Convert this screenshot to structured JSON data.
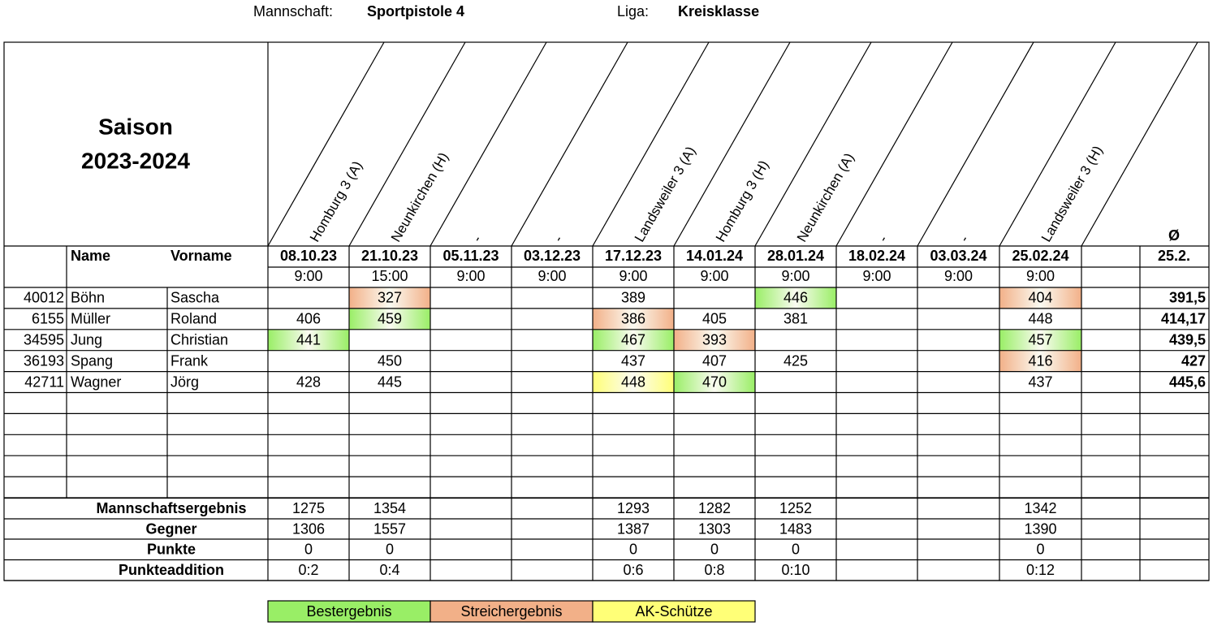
{
  "header": {
    "team_label": "Mannschaft:",
    "team": "Sportpistole 4",
    "league_label": "Liga:",
    "league": "Kreisklasse"
  },
  "season": {
    "title": "Saison",
    "years": "2023-2024"
  },
  "columns": {
    "name": "Name",
    "first_name": "Vorname",
    "average": "Ø",
    "average_date": "25.2."
  },
  "matches": [
    {
      "opponent": "Homburg 3 (A)",
      "date": "08.10.23",
      "time": "9:00"
    },
    {
      "opponent": "Neunkirchen (H)",
      "date": "21.10.23",
      "time": "15:00"
    },
    {
      "opponent": "-",
      "date": "05.11.23",
      "time": "9:00"
    },
    {
      "opponent": "-",
      "date": "03.12.23",
      "time": "9:00"
    },
    {
      "opponent": "Landsweiler 3 (A)",
      "date": "17.12.23",
      "time": "9:00"
    },
    {
      "opponent": "Homburg 3 (H)",
      "date": "14.01.24",
      "time": "9:00"
    },
    {
      "opponent": "Neunkirchen (A)",
      "date": "28.01.24",
      "time": "9:00"
    },
    {
      "opponent": "-",
      "date": "18.02.24",
      "time": "9:00"
    },
    {
      "opponent": "-",
      "date": "03.03.24",
      "time": "9:00"
    },
    {
      "opponent": "Landsweiler 3 (H)",
      "date": "25.02.24",
      "time": "9:00",
      "highlight": "#ff0000"
    }
  ],
  "legend": [
    {
      "label": "Bestergebnis",
      "color": "#99ee66"
    },
    {
      "label": "Streichergebnis",
      "color": "#f2b088"
    },
    {
      "label": "AK-Schütze",
      "color": "#ffff77"
    }
  ],
  "players": [
    {
      "id": 40012,
      "name": "Böhn",
      "first_name": "Sascha",
      "scores": [
        null,
        327,
        null,
        null,
        389,
        null,
        446,
        null,
        null,
        404
      ],
      "marks": [
        null,
        1,
        null,
        null,
        null,
        null,
        0,
        null,
        null,
        1
      ],
      "average": "391,5"
    },
    {
      "id": 6155,
      "name": "Müller",
      "first_name": "Roland",
      "scores": [
        406,
        459,
        null,
        null,
        386,
        405,
        381,
        null,
        null,
        448
      ],
      "marks": [
        null,
        0,
        null,
        null,
        1,
        null,
        null,
        null,
        null,
        null
      ],
      "average": "414,17"
    },
    {
      "id": 34595,
      "name": "Jung",
      "first_name": "Christian",
      "scores": [
        441,
        null,
        null,
        null,
        467,
        393,
        null,
        null,
        null,
        457
      ],
      "marks": [
        0,
        null,
        null,
        null,
        0,
        1,
        null,
        null,
        null,
        0
      ],
      "average": "439,5"
    },
    {
      "id": 36193,
      "name": "Spang",
      "first_name": "Frank",
      "scores": [
        null,
        450,
        null,
        null,
        437,
        407,
        425,
        null,
        null,
        416
      ],
      "marks": [
        null,
        null,
        null,
        null,
        null,
        null,
        null,
        null,
        null,
        1
      ],
      "average": "427"
    },
    {
      "id": 42711,
      "name": "Wagner",
      "first_name": "Jörg",
      "scores": [
        428,
        445,
        null,
        null,
        448,
        470,
        null,
        null,
        null,
        437
      ],
      "marks": [
        null,
        null,
        null,
        null,
        2,
        0,
        null,
        null,
        null,
        null
      ],
      "average": "445,6"
    }
  ],
  "summary": [
    {
      "label": "Mannschaftsergebnis",
      "values": [
        1275,
        1354,
        null,
        null,
        1293,
        1282,
        1252,
        null,
        null,
        1342
      ]
    },
    {
      "label": "Gegner",
      "values": [
        1306,
        1557,
        null,
        null,
        1387,
        1303,
        1483,
        null,
        null,
        1390
      ]
    },
    {
      "label": "Punkte",
      "values": [
        0,
        0,
        null,
        null,
        0,
        0,
        0,
        null,
        null,
        0
      ]
    },
    {
      "label": "Punkteaddition",
      "values": [
        "0:2",
        "0:4",
        null,
        null,
        "0:6",
        "0:8",
        "0:10",
        null,
        null,
        "0:12"
      ]
    }
  ]
}
